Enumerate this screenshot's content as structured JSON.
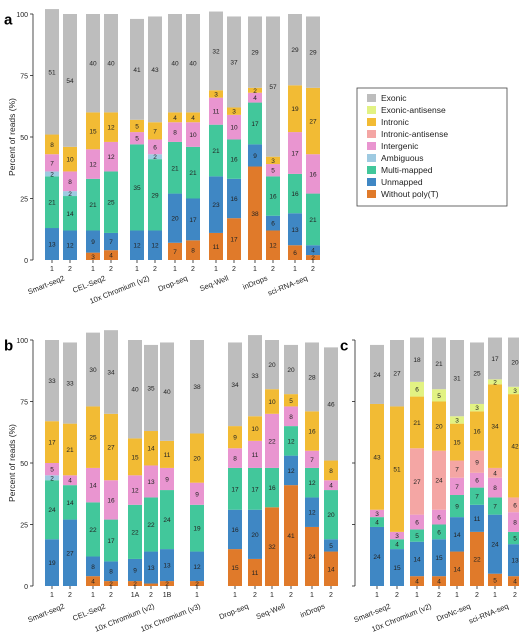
{
  "colors": {
    "Exonic": "#bdbdbd",
    "Exonic-antisense": "#e2f283",
    "Intronic": "#f2bb34",
    "Intronic-antisense": "#f4a6a4",
    "Intergenic": "#e995d0",
    "Ambiguous": "#9ecae1",
    "Multi-mapped": "#42c79b",
    "Unmapped": "#3f87c4",
    "Without poly(T)": "#e07a2a"
  },
  "legend": [
    "Exonic",
    "Exonic-antisense",
    "Intronic",
    "Intronic-antisense",
    "Intergenic",
    "Ambiguous",
    "Multi-mapped",
    "Unmapped",
    "Without poly(T)"
  ],
  "chart_data": [
    {
      "panel": "a",
      "type": "bar",
      "stacked": true,
      "ylabel": "Percent of reads (%)",
      "ylim": [
        0,
        100
      ],
      "yticks": [
        0,
        25,
        50,
        75,
        100
      ],
      "groups": [
        {
          "name": "Smart-seq2",
          "bars": [
            {
              "label": "1",
              "segments": {
                "Without poly(T)": 0,
                "Unmapped": 13,
                "Multi-mapped": 21,
                "Ambiguous": 2,
                "Intergenic": 7,
                "Intronic": 8,
                "Exonic": 51
              }
            },
            {
              "label": "2",
              "segments": {
                "Without poly(T)": 0,
                "Unmapped": 12,
                "Multi-mapped": 14,
                "Ambiguous": 2,
                "Intergenic": 8,
                "Intronic": 10,
                "Exonic": 54
              }
            }
          ]
        },
        {
          "name": "CEL-Seq2",
          "bars": [
            {
              "label": "1",
              "segments": {
                "Without poly(T)": 3,
                "Unmapped": 9,
                "Multi-mapped": 21,
                "Intergenic": 12,
                "Intronic": 15,
                "Exonic": 40
              }
            },
            {
              "label": "2",
              "segments": {
                "Without poly(T)": 4,
                "Unmapped": 7,
                "Multi-mapped": 25,
                "Intergenic": 12,
                "Intronic": 12,
                "Exonic": 40
              }
            }
          ]
        },
        {
          "name": "10x Chromium (v2)",
          "bars": [
            {
              "label": "1",
              "segments": {
                "Without poly(T)": 0,
                "Unmapped": 12,
                "Multi-mapped": 35,
                "Intergenic": 5,
                "Intronic": 5,
                "Exonic": 41
              }
            },
            {
              "label": "2",
              "segments": {
                "Without poly(T)": 0,
                "Unmapped": 12,
                "Multi-mapped": 29,
                "Ambiguous": 2,
                "Intergenic": 6,
                "Intronic": 7,
                "Exonic": 43
              }
            }
          ]
        },
        {
          "name": "Drop-seq",
          "bars": [
            {
              "label": "1",
              "segments": {
                "Without poly(T)": 7,
                "Unmapped": 20,
                "Multi-mapped": 21,
                "Intergenic": 8,
                "Intronic": 4,
                "Exonic": 40
              }
            },
            {
              "label": "2",
              "segments": {
                "Without poly(T)": 8,
                "Unmapped": 17,
                "Multi-mapped": 21,
                "Intergenic": 10,
                "Intronic": 4,
                "Exonic": 40
              }
            }
          ]
        },
        {
          "name": "Seq-Well",
          "bars": [
            {
              "label": "1",
              "segments": {
                "Without poly(T)": 11,
                "Unmapped": 23,
                "Multi-mapped": 21,
                "Intergenic": 11,
                "Intronic": 3,
                "Exonic": 32
              }
            },
            {
              "label": "2",
              "segments": {
                "Without poly(T)": 17,
                "Unmapped": 16,
                "Multi-mapped": 16,
                "Intergenic": 10,
                "Intronic": 3,
                "Exonic": 37
              }
            }
          ]
        },
        {
          "name": "inDrops",
          "bars": [
            {
              "label": "1",
              "segments": {
                "Without poly(T)": 38,
                "Unmapped": 9,
                "Multi-mapped": 17,
                "Intergenic": 4,
                "Intronic": 2,
                "Exonic": 29
              }
            },
            {
              "label": "2",
              "segments": {
                "Without poly(T)": 12,
                "Unmapped": 6,
                "Multi-mapped": 16,
                "Intergenic": 5,
                "Intronic": 3,
                "Exonic": 57
              }
            }
          ]
        },
        {
          "name": "sci-RNA-seq",
          "bars": [
            {
              "label": "1",
              "segments": {
                "Without poly(T)": 6,
                "Unmapped": 13,
                "Multi-mapped": 16,
                "Intergenic": 17,
                "Intronic": 19,
                "Exonic": 29
              }
            },
            {
              "label": "2",
              "segments": {
                "Without poly(T)": 2,
                "Unmapped": 4,
                "Multi-mapped": 21,
                "Intergenic": 16,
                "Intronic": 27,
                "Exonic": 29
              }
            }
          ]
        }
      ]
    },
    {
      "panel": "b",
      "type": "bar",
      "stacked": true,
      "ylabel": "Percent of reads (%)",
      "ylim": [
        0,
        100
      ],
      "yticks": [
        0,
        25,
        50,
        75,
        100
      ],
      "groups": [
        {
          "name": "Smart-seq2",
          "bars": [
            {
              "label": "1",
              "segments": {
                "Without poly(T)": 0,
                "Unmapped": 19,
                "Multi-mapped": 24,
                "Ambiguous": 2,
                "Intergenic": 5,
                "Intronic": 17,
                "Exonic": 33
              }
            },
            {
              "label": "2",
              "segments": {
                "Without poly(T)": 0,
                "Unmapped": 27,
                "Multi-mapped": 14,
                "Intergenic": 4,
                "Intronic": 21,
                "Exonic": 33
              }
            }
          ]
        },
        {
          "name": "CEL-Seq2",
          "bars": [
            {
              "label": "1",
              "segments": {
                "Without poly(T)": 4,
                "Unmapped": 8,
                "Multi-mapped": 22,
                "Intergenic": 14,
                "Intronic": 25,
                "Exonic": 30
              }
            },
            {
              "label": "2",
              "segments": {
                "Without poly(T)": 2,
                "Unmapped": 8,
                "Multi-mapped": 17,
                "Intergenic": 16,
                "Intronic": 27,
                "Exonic": 34
              }
            }
          ]
        },
        {
          "name": "10x Chromium (v2)",
          "bars": [
            {
              "label": "1A",
              "segments": {
                "Without poly(T)": 2,
                "Unmapped": 9,
                "Multi-mapped": 22,
                "Intergenic": 12,
                "Intronic": 15,
                "Exonic": 40
              }
            },
            {
              "label": "2",
              "segments": {
                "Without poly(T)": 1,
                "Unmapped": 13,
                "Multi-mapped": 22,
                "Intergenic": 13,
                "Intronic": 14,
                "Exonic": 35
              }
            },
            {
              "label": "1B",
              "segments": {
                "Without poly(T)": 2,
                "Unmapped": 13,
                "Multi-mapped": 24,
                "Intergenic": 9,
                "Intronic": 11,
                "Exonic": 40
              }
            }
          ]
        },
        {
          "name": "10x Chromium (v3)",
          "bars": [
            {
              "label": "1",
              "segments": {
                "Without poly(T)": 2,
                "Unmapped": 12,
                "Multi-mapped": 19,
                "Intergenic": 9,
                "Intronic": 20,
                "Exonic": 38
              }
            }
          ]
        },
        {
          "name": "Drop-seq",
          "bars": [
            {
              "label": "1",
              "segments": {
                "Without poly(T)": 15,
                "Unmapped": 16,
                "Multi-mapped": 17,
                "Intergenic": 8,
                "Intronic": 9,
                "Exonic": 34
              }
            },
            {
              "label": "2",
              "segments": {
                "Without poly(T)": 11,
                "Unmapped": 20,
                "Multi-mapped": 17,
                "Intergenic": 11,
                "Intronic": 10,
                "Exonic": 33
              }
            }
          ]
        },
        {
          "name": "Seq-Well",
          "bars": [
            {
              "label": "1",
              "segments": {
                "Without poly(T)": 32,
                "Unmapped": 0,
                "Multi-mapped": 16,
                "Intergenic": 22,
                "Intronic": 10,
                "Exonic": 20
              }
            },
            {
              "label": "2",
              "segments": {
                "Without poly(T)": 41,
                "Unmapped": 12,
                "Multi-mapped": 12,
                "Intergenic": 8,
                "Intronic": 5,
                "Exonic": 20
              }
            }
          ]
        },
        {
          "name": "inDrops",
          "bars": [
            {
              "label": "1",
              "segments": {
                "Without poly(T)": 24,
                "Unmapped": 12,
                "Multi-mapped": 12,
                "Intergenic": 7,
                "Intronic": 16,
                "Exonic": 28
              }
            },
            {
              "label": "2",
              "segments": {
                "Without poly(T)": 14,
                "Unmapped": 5,
                "Multi-mapped": 20,
                "Intergenic": 4,
                "Intronic": 8,
                "Exonic": 46
              }
            }
          ]
        }
      ]
    },
    {
      "panel": "c",
      "type": "bar",
      "stacked": true,
      "ylabel": "",
      "ylim": [
        0,
        100
      ],
      "yticks": [
        0,
        25,
        50,
        75,
        100
      ],
      "groups": [
        {
          "name": "Smart-seq2",
          "bars": [
            {
              "label": "1",
              "segments": {
                "Without poly(T)": 0,
                "Unmapped": 24,
                "Multi-mapped": 4,
                "Intergenic": 3,
                "Intronic": 43,
                "Exonic": 24
              }
            },
            {
              "label": "2",
              "segments": {
                "Without poly(T)": 0,
                "Unmapped": 15,
                "Multi-mapped": 4,
                "Intergenic": 3,
                "Intronic": 51,
                "Exonic": 27
              }
            }
          ]
        },
        {
          "name": "10x Chromium (v2)",
          "bars": [
            {
              "label": "1",
              "segments": {
                "Without poly(T)": 4,
                "Unmapped": 14,
                "Multi-mapped": 5,
                "Intergenic": 6,
                "Intronic-antisense": 27,
                "Intronic": 21,
                "Exonic-antisense": 6,
                "Exonic": 18
              }
            },
            {
              "label": "2",
              "segments": {
                "Without poly(T)": 4,
                "Unmapped": 15,
                "Multi-mapped": 6,
                "Intergenic": 6,
                "Intronic-antisense": 24,
                "Intronic": 20,
                "Exonic-antisense": 5,
                "Exonic": 21
              }
            }
          ]
        },
        {
          "name": "DroNc-seq",
          "bars": [
            {
              "label": "1",
              "segments": {
                "Without poly(T)": 14,
                "Unmapped": 14,
                "Multi-mapped": 9,
                "Intergenic": 7,
                "Intronic-antisense": 7,
                "Intronic": 15,
                "Exonic-antisense": 3,
                "Exonic": 31
              }
            },
            {
              "label": "2",
              "segments": {
                "Without poly(T)": 22,
                "Unmapped": 11,
                "Multi-mapped": 7,
                "Intergenic": 6,
                "Intronic-antisense": 9,
                "Intronic": 16,
                "Exonic-antisense": 3,
                "Exonic": 25
              }
            }
          ]
        },
        {
          "name": "sci-RNA-seq",
          "bars": [
            {
              "label": "1",
              "segments": {
                "Without poly(T)": 5,
                "Unmapped": 24,
                "Multi-mapped": 7,
                "Intergenic": 8,
                "Intronic-antisense": 4,
                "Intronic": 34,
                "Exonic-antisense": 2,
                "Exonic": 17
              }
            },
            {
              "label": "2",
              "segments": {
                "Without poly(T)": 4,
                "Unmapped": 13,
                "Multi-mapped": 5,
                "Intergenic": 8,
                "Intronic-antisense": 6,
                "Intronic": 42,
                "Exonic-antisense": 3,
                "Exonic": 20
              }
            }
          ]
        }
      ]
    }
  ]
}
